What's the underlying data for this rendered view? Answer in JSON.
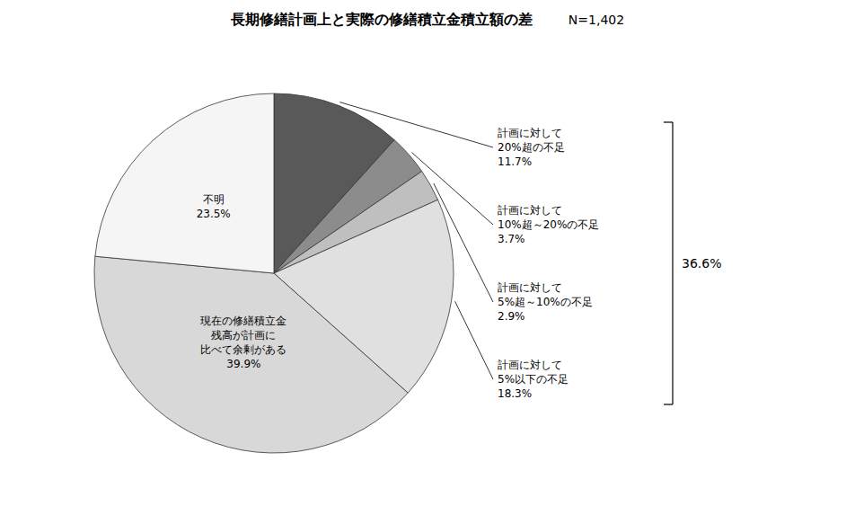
{
  "chart_data": {
    "type": "pie",
    "title": "長期修繕計画上と実際の修繕積立金積立額の差",
    "subtitle": "N=1,402",
    "categories": [
      "計画に対して\n20%超の不足",
      "計画に対して\n10%超～20%の不足",
      "計画に対して\n5%超～10%の不足",
      "計画に対して\n5%以下の不足",
      "現在の修繕積立金\n残高が計画に\n比べて余剰がある",
      "不明"
    ],
    "values": [
      11.7,
      3.7,
      2.9,
      18.3,
      39.9,
      23.5
    ],
    "value_labels": [
      "11.7%",
      "3.7%",
      "2.9%",
      "18.3%",
      "39.9%",
      "23.5%"
    ],
    "colors": [
      "#595959",
      "#8c8c8c",
      "#bfbfbf",
      "#e0e0e0",
      "#d8d8d8",
      "#f5f5f5"
    ],
    "data_labels": true,
    "annotations": [
      "36.6%"
    ]
  }
}
